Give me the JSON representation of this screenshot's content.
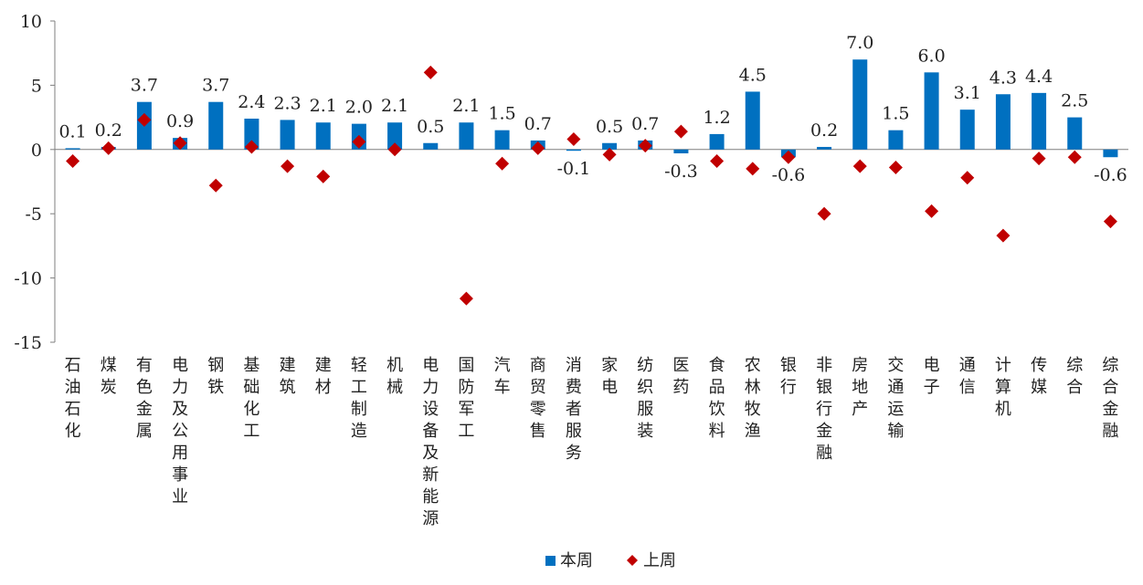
{
  "chart_data": {
    "type": "bar",
    "categories": [
      "石油石化",
      "煤炭",
      "有色金属",
      "电力及公用事业",
      "钢铁",
      "基础化工",
      "建筑",
      "建材",
      "轻工制造",
      "机械",
      "电力设备及新能源",
      "国防军工",
      "汽车",
      "商贸零售",
      "消费者服务",
      "家电",
      "纺织服装",
      "医药",
      "食品饮料",
      "农林牧渔",
      "银行",
      "非银行金融",
      "房地产",
      "交通运输",
      "电子",
      "通信",
      "计算机",
      "传媒",
      "综合",
      "综合金融"
    ],
    "series": [
      {
        "name": "本周",
        "type": "bar",
        "color": "#0070c0",
        "values": [
          0.1,
          0.2,
          3.7,
          0.9,
          3.7,
          2.4,
          2.3,
          2.1,
          2.0,
          2.1,
          0.5,
          2.1,
          1.5,
          0.7,
          -0.1,
          0.5,
          0.7,
          -0.3,
          1.2,
          4.5,
          -0.6,
          0.2,
          7.0,
          1.5,
          6.0,
          3.1,
          4.3,
          4.4,
          2.5,
          -0.6
        ],
        "labels": [
          "0.1",
          "0.2",
          "3.7",
          "0.9",
          "3.7",
          "2.4",
          "2.3",
          "2.1",
          "2.0",
          "2.1",
          "0.5",
          "2.1",
          "1.5",
          "0.7",
          "-0.1",
          "0.5",
          "0.7",
          "-0.3",
          "1.2",
          "4.5",
          "-0.6",
          "0.2",
          "7.0",
          "1.5",
          "6.0",
          "3.1",
          "4.3",
          "4.4",
          "2.5",
          "-0.6"
        ]
      },
      {
        "name": "上周",
        "type": "scatter",
        "marker": "diamond",
        "color": "#c00000",
        "values": [
          -0.9,
          0.1,
          2.3,
          0.5,
          -2.8,
          0.2,
          -1.3,
          -2.1,
          0.6,
          0.0,
          6.0,
          -11.6,
          -1.1,
          0.1,
          0.8,
          -0.4,
          0.3,
          1.4,
          -0.9,
          -1.5,
          -0.6,
          -5.0,
          -1.3,
          -1.4,
          -4.8,
          -2.2,
          -6.7,
          -0.7,
          -0.6,
          -5.6
        ]
      }
    ],
    "ylim": [
      -15,
      10
    ],
    "yticks": [
      "10",
      "5",
      "0",
      "-5",
      "-10",
      "-15"
    ],
    "title": "",
    "xlabel": "",
    "ylabel": "",
    "grid": false,
    "legend": "bottom-center"
  }
}
